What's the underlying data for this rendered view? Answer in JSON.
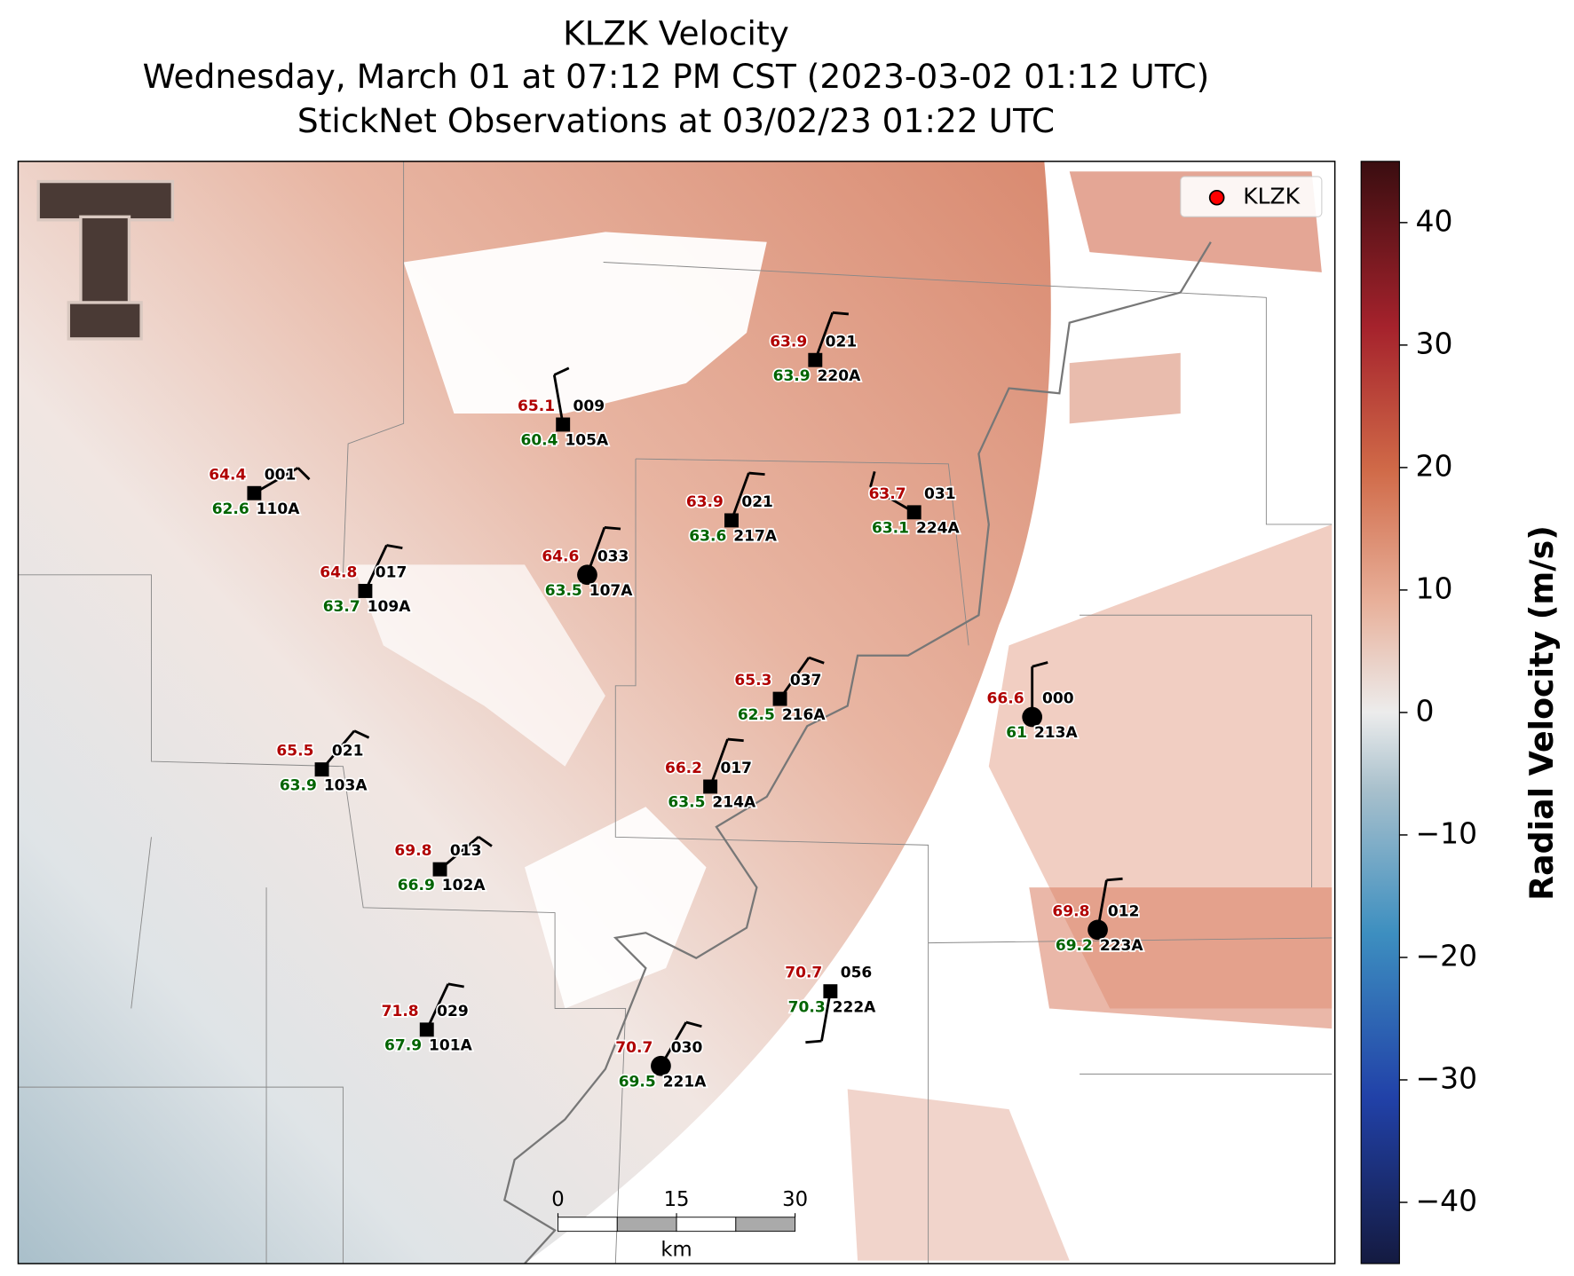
{
  "title": [
    "KLZK Velocity",
    "Wednesday, March 01 at 07:12 PM CST (2023-03-02 01:12 UTC)",
    "StickNet Observations at 03/02/23 01:22 UTC"
  ],
  "legend": {
    "label": "KLZK",
    "color": "#ff0000"
  },
  "colorbar": {
    "label": "Radial Velocity (m/s)",
    "lim": [
      -45,
      45
    ],
    "ticks": [
      40,
      30,
      20,
      10,
      0,
      {
        "value": -10,
        "label": "−10"
      },
      {
        "value": -20,
        "label": "−20"
      },
      {
        "value": -30,
        "label": "−30"
      },
      {
        "value": -40,
        "label": "−40"
      }
    ]
  },
  "scale_bar": {
    "ticks": [
      0,
      15,
      30
    ],
    "unit": "km"
  },
  "stations": [
    {
      "temperature": 63.9,
      "dewpoint": 63.9,
      "code": "021",
      "id": "220A",
      "marker": "square"
    },
    {
      "temperature": 65.1,
      "dewpoint": 60.4,
      "code": "009",
      "id": "105A",
      "marker": "square"
    },
    {
      "temperature": 64.4,
      "dewpoint": 62.6,
      "code": "001",
      "id": "110A",
      "marker": "square"
    },
    {
      "temperature": 63.9,
      "dewpoint": 63.6,
      "code": "021",
      "id": "217A",
      "marker": "square"
    },
    {
      "temperature": 63.7,
      "dewpoint": 63.1,
      "code": "031",
      "id": "224A",
      "marker": "square"
    },
    {
      "temperature": 64.6,
      "dewpoint": 63.5,
      "code": "033",
      "id": "107A",
      "marker": "circle"
    },
    {
      "temperature": 64.8,
      "dewpoint": 63.7,
      "code": "017",
      "id": "109A",
      "marker": "square"
    },
    {
      "temperature": 65.3,
      "dewpoint": 62.5,
      "code": "037",
      "id": "216A",
      "marker": "square"
    },
    {
      "temperature": 66.6,
      "dewpoint": 61.0,
      "code": "000",
      "id": "213A",
      "marker": "circle"
    },
    {
      "temperature": 65.5,
      "dewpoint": 63.9,
      "code": "021",
      "id": "103A",
      "marker": "square"
    },
    {
      "temperature": 66.2,
      "dewpoint": 63.5,
      "code": "017",
      "id": "214A",
      "marker": "square"
    },
    {
      "temperature": 69.8,
      "dewpoint": 66.9,
      "code": "013",
      "id": "102A",
      "marker": "square"
    },
    {
      "temperature": 69.8,
      "dewpoint": 69.2,
      "code": "012",
      "id": "223A",
      "marker": "circle"
    },
    {
      "temperature": 70.7,
      "dewpoint": 70.3,
      "code": "056",
      "id": "222A",
      "marker": "square"
    },
    {
      "temperature": 71.8,
      "dewpoint": 67.9,
      "code": "029",
      "id": "101A",
      "marker": "square"
    },
    {
      "temperature": 70.7,
      "dewpoint": 69.5,
      "code": "030",
      "id": "221A",
      "marker": "circle"
    }
  ]
}
